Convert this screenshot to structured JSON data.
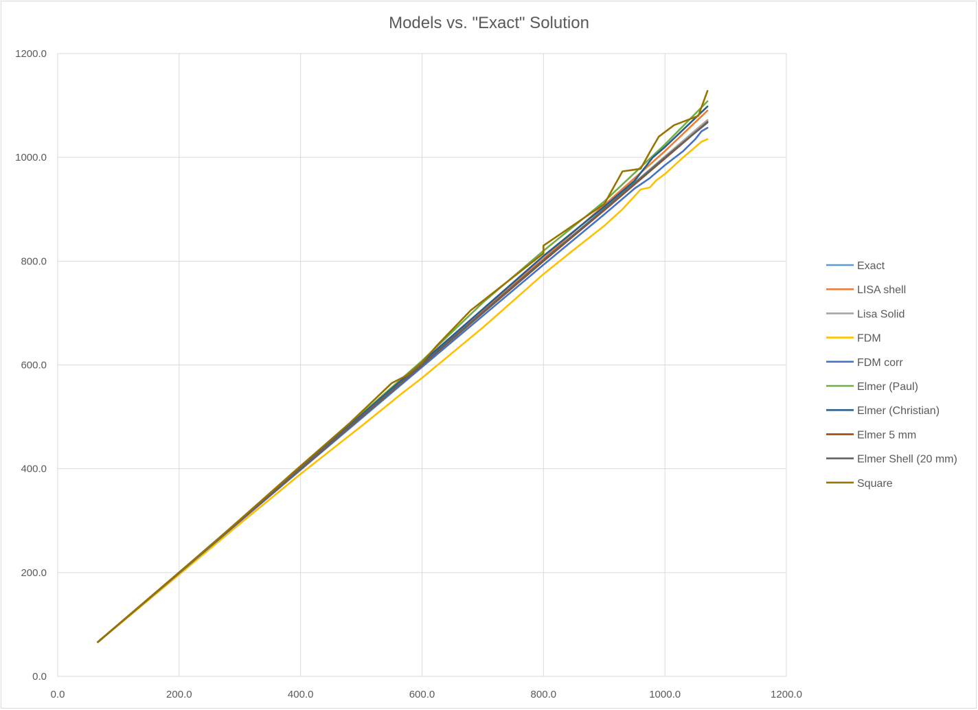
{
  "chart_data": {
    "type": "line",
    "title": "Models vs. \"Exact\" Solution",
    "xlabel": "",
    "ylabel": "",
    "xlim": [
      0,
      1200
    ],
    "ylim": [
      0,
      1200
    ],
    "xticks": [
      "0.0",
      "200.0",
      "400.0",
      "600.0",
      "800.0",
      "1000.0",
      "1200.0"
    ],
    "yticks": [
      "0.0",
      "200.0",
      "400.0",
      "600.0",
      "800.0",
      "1000.0",
      "1200.0"
    ],
    "grid": true,
    "legend_position": "right",
    "series": [
      {
        "name": "Exact",
        "color": "#5b9bd5",
        "points": [
          [
            66,
            66
          ],
          [
            200,
            200
          ],
          [
            400,
            400
          ],
          [
            600,
            600
          ],
          [
            800,
            800
          ],
          [
            900,
            900
          ],
          [
            1000,
            1000
          ],
          [
            1070,
            1070
          ]
        ]
      },
      {
        "name": "LISA shell",
        "color": "#ed7d31",
        "points": [
          [
            66,
            66
          ],
          [
            200,
            200
          ],
          [
            400,
            402
          ],
          [
            600,
            603
          ],
          [
            800,
            805
          ],
          [
            900,
            908
          ],
          [
            1000,
            1012
          ],
          [
            1070,
            1090
          ]
        ]
      },
      {
        "name": "Lisa Solid",
        "color": "#a5a5a5",
        "points": [
          [
            66,
            66
          ],
          [
            200,
            200
          ],
          [
            400,
            400
          ],
          [
            600,
            600
          ],
          [
            800,
            801
          ],
          [
            900,
            901
          ],
          [
            1000,
            1002
          ],
          [
            1070,
            1072
          ]
        ]
      },
      {
        "name": "FDM",
        "color": "#ffc000",
        "points": [
          [
            66,
            66
          ],
          [
            200,
            196
          ],
          [
            300,
            294
          ],
          [
            400,
            390
          ],
          [
            500,
            482
          ],
          [
            570,
            548
          ],
          [
            600,
            575
          ],
          [
            700,
            672
          ],
          [
            800,
            775
          ],
          [
            850,
            822
          ],
          [
            900,
            868
          ],
          [
            930,
            900
          ],
          [
            960,
            938
          ],
          [
            975,
            942
          ],
          [
            985,
            955
          ],
          [
            1000,
            968
          ],
          [
            1030,
            1000
          ],
          [
            1050,
            1020
          ],
          [
            1060,
            1030
          ],
          [
            1070,
            1035
          ]
        ]
      },
      {
        "name": "FDM corr",
        "color": "#4472c4",
        "points": [
          [
            66,
            66
          ],
          [
            200,
            199
          ],
          [
            400,
            398
          ],
          [
            600,
            596
          ],
          [
            800,
            793
          ],
          [
            900,
            890
          ],
          [
            950,
            940
          ],
          [
            975,
            960
          ],
          [
            990,
            975
          ],
          [
            1000,
            985
          ],
          [
            1030,
            1012
          ],
          [
            1050,
            1035
          ],
          [
            1060,
            1050
          ],
          [
            1070,
            1057
          ]
        ]
      },
      {
        "name": "Elmer (Paul)",
        "color": "#70ad47",
        "points": [
          [
            66,
            66
          ],
          [
            200,
            200
          ],
          [
            400,
            403
          ],
          [
            600,
            608
          ],
          [
            700,
            720
          ],
          [
            800,
            820
          ],
          [
            900,
            915
          ],
          [
            1000,
            1025
          ],
          [
            1070,
            1108
          ]
        ]
      },
      {
        "name": "Elmer (Christian)",
        "color": "#255e91",
        "points": [
          [
            66,
            66
          ],
          [
            200,
            200
          ],
          [
            400,
            402
          ],
          [
            600,
            605
          ],
          [
            800,
            810
          ],
          [
            900,
            905
          ],
          [
            950,
            955
          ],
          [
            980,
            1000
          ],
          [
            1000,
            1020
          ],
          [
            1070,
            1098
          ]
        ]
      },
      {
        "name": "Elmer 5 mm",
        "color": "#9e480e",
        "points": [
          [
            66,
            66
          ],
          [
            200,
            200
          ],
          [
            400,
            400
          ],
          [
            600,
            600
          ],
          [
            800,
            800
          ],
          [
            900,
            898
          ],
          [
            1000,
            998
          ],
          [
            1070,
            1068
          ]
        ]
      },
      {
        "name": "Elmer Shell (20 mm)",
        "color": "#636363",
        "points": [
          [
            66,
            66
          ],
          [
            200,
            200
          ],
          [
            400,
            401
          ],
          [
            600,
            601
          ],
          [
            800,
            802
          ],
          [
            900,
            900
          ],
          [
            1000,
            1000
          ],
          [
            1070,
            1067
          ]
        ]
      },
      {
        "name": "Square",
        "color": "#997300",
        "points": [
          [
            66,
            66
          ],
          [
            80,
            80
          ],
          [
            200,
            200
          ],
          [
            250,
            250
          ],
          [
            390,
            395
          ],
          [
            480,
            487
          ],
          [
            550,
            565
          ],
          [
            575,
            580
          ],
          [
            600,
            605
          ],
          [
            625,
            638
          ],
          [
            680,
            705
          ],
          [
            800,
            815
          ],
          [
            800,
            830
          ],
          [
            900,
            910
          ],
          [
            930,
            973
          ],
          [
            960,
            978
          ],
          [
            975,
            1010
          ],
          [
            990,
            1040
          ],
          [
            1015,
            1062
          ],
          [
            1055,
            1080
          ],
          [
            1070,
            1128
          ]
        ]
      }
    ]
  }
}
